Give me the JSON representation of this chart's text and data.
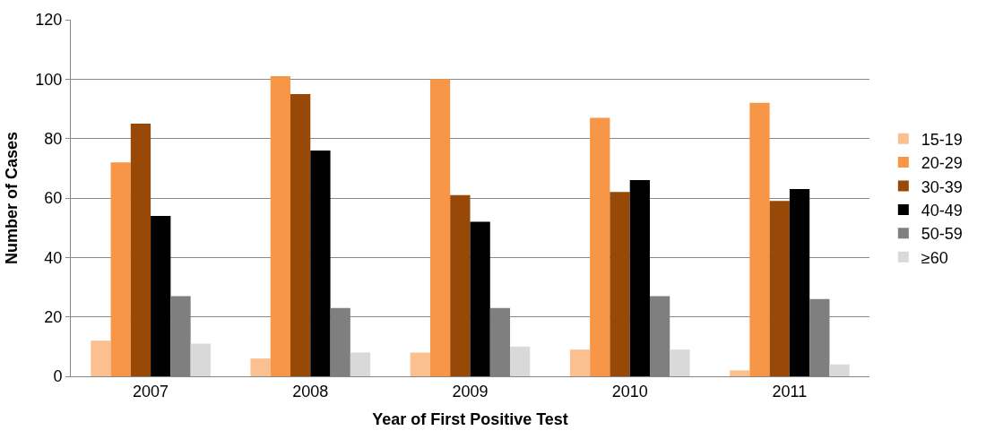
{
  "chart_data": {
    "type": "bar",
    "xlabel": "Year of First Positive Test",
    "ylabel": "Number of Cases",
    "categories": [
      "2007",
      "2008",
      "2009",
      "2010",
      "2011"
    ],
    "series": [
      {
        "name": "15-19",
        "color": "#fac090",
        "values": [
          12,
          6,
          8,
          9,
          2
        ]
      },
      {
        "name": "20-29",
        "color": "#f79646",
        "values": [
          72,
          101,
          100,
          87,
          92
        ]
      },
      {
        "name": "30-39",
        "color": "#984807",
        "values": [
          85,
          95,
          61,
          62,
          59
        ]
      },
      {
        "name": "40-49",
        "color": "#000000",
        "values": [
          54,
          76,
          52,
          66,
          63
        ]
      },
      {
        "name": "50-59",
        "color": "#7f7f7f",
        "values": [
          27,
          23,
          23,
          27,
          26
        ]
      },
      {
        "name": "≥60",
        "color": "#d9d9d9",
        "values": [
          11,
          8,
          10,
          9,
          4
        ]
      }
    ],
    "ylim": [
      0,
      120
    ],
    "yticks": [
      0,
      20,
      40,
      60,
      80,
      100,
      120
    ],
    "grid": "y",
    "legend": "right"
  }
}
